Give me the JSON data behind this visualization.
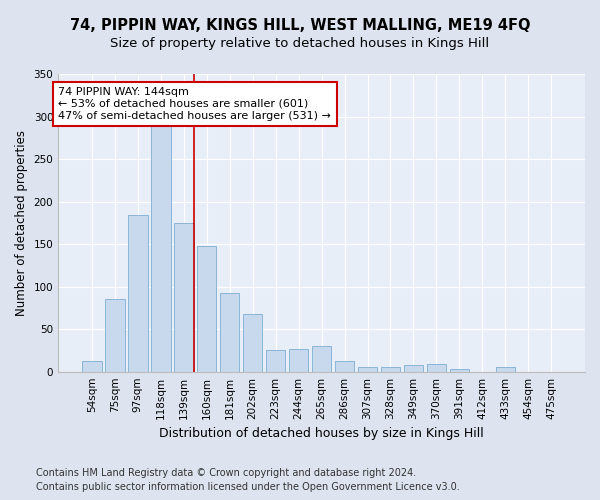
{
  "title": "74, PIPPIN WAY, KINGS HILL, WEST MALLING, ME19 4FQ",
  "subtitle": "Size of property relative to detached houses in Kings Hill",
  "xlabel": "Distribution of detached houses by size in Kings Hill",
  "ylabel": "Number of detached properties",
  "categories": [
    "54sqm",
    "75sqm",
    "97sqm",
    "118sqm",
    "139sqm",
    "160sqm",
    "181sqm",
    "202sqm",
    "223sqm",
    "244sqm",
    "265sqm",
    "286sqm",
    "307sqm",
    "328sqm",
    "349sqm",
    "370sqm",
    "391sqm",
    "412sqm",
    "433sqm",
    "454sqm",
    "475sqm"
  ],
  "values": [
    12,
    86,
    184,
    290,
    175,
    148,
    93,
    68,
    25,
    27,
    30,
    13,
    5,
    6,
    8,
    9,
    3,
    0,
    6,
    0,
    0
  ],
  "bar_color": "#c8d9ee",
  "bar_edgecolor": "#7bafd4",
  "vline_color": "#cc0000",
  "annotation_line1": "74 PIPPIN WAY: 144sqm",
  "annotation_line2": "← 53% of detached houses are smaller (601)",
  "annotation_line3": "47% of semi-detached houses are larger (531) →",
  "annotation_box_color": "#ffffff",
  "annotation_box_edgecolor": "#cc0000",
  "ylim": [
    0,
    350
  ],
  "yticks": [
    0,
    50,
    100,
    150,
    200,
    250,
    300,
    350
  ],
  "bg_color": "#dde4ef",
  "plot_bg_color": "#e8eef7",
  "grid_color": "#ffffff",
  "footer_line1": "Contains HM Land Registry data © Crown copyright and database right 2024.",
  "footer_line2": "Contains public sector information licensed under the Open Government Licence v3.0.",
  "title_fontsize": 10.5,
  "subtitle_fontsize": 9.5,
  "xlabel_fontsize": 9,
  "ylabel_fontsize": 8.5,
  "tick_fontsize": 7.5,
  "annotation_fontsize": 8,
  "footer_fontsize": 7
}
